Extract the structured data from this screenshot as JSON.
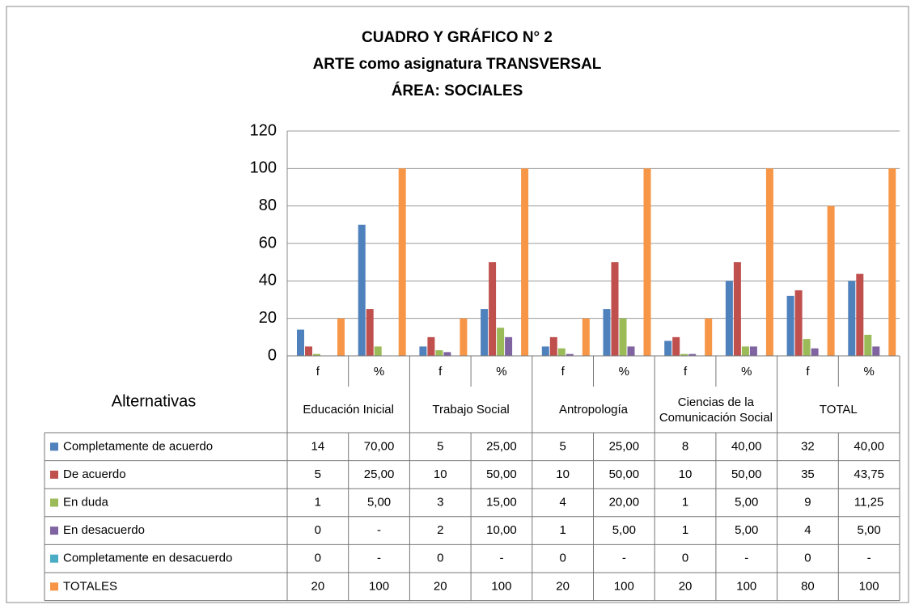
{
  "chart_data": {
    "type": "bar",
    "title": [
      "CUADRO Y GRÁFICO N° 2",
      "ARTE como asignatura TRANSVERSAL",
      "ÁREA: SOCIALES"
    ],
    "table_header": "Alternativas",
    "categories": [
      "f",
      "%",
      "f",
      "%",
      "f",
      "%",
      "f",
      "%",
      "f",
      "%"
    ],
    "groups": [
      "Educación Inicial",
      "Trabajo Social",
      "Antropología",
      "Ciencias de la Comunicación Social",
      "TOTAL"
    ],
    "ylim": [
      0,
      120
    ],
    "yticks": [
      0,
      20,
      40,
      60,
      80,
      100,
      120
    ],
    "grid": true,
    "series": [
      {
        "name": "Completamente de acuerdo",
        "color": "#4f81bd",
        "values": [
          14,
          70,
          5,
          25,
          5,
          25,
          8,
          40,
          32,
          40
        ],
        "value_labels": [
          "14",
          "70,00",
          "5",
          "25,00",
          "5",
          "25,00",
          "8",
          "40,00",
          "32",
          "40,00"
        ]
      },
      {
        "name": "De acuerdo",
        "color": "#c0504d",
        "values": [
          5,
          25,
          10,
          50,
          10,
          50,
          10,
          50,
          35,
          43.75
        ],
        "value_labels": [
          "5",
          "25,00",
          "10",
          "50,00",
          "10",
          "50,00",
          "10",
          "50,00",
          "35",
          "43,75"
        ]
      },
      {
        "name": "En duda",
        "color": "#9bbb59",
        "values": [
          1,
          5,
          3,
          15,
          4,
          20,
          1,
          5,
          9,
          11.25
        ],
        "value_labels": [
          "1",
          "5,00",
          "3",
          "15,00",
          "4",
          "20,00",
          "1",
          "5,00",
          "9",
          "11,25"
        ]
      },
      {
        "name": "En desacuerdo",
        "color": "#8064a2",
        "values": [
          0,
          0,
          2,
          10,
          1,
          5,
          1,
          5,
          4,
          5
        ],
        "value_labels": [
          "0",
          "-",
          "2",
          "10,00",
          "1",
          "5,00",
          "1",
          "5,00",
          "4",
          "5,00"
        ]
      },
      {
        "name": "Completamente en desacuerdo",
        "color": "#4bacc6",
        "values": [
          0,
          0,
          0,
          0,
          0,
          0,
          0,
          0,
          0,
          0
        ],
        "value_labels": [
          "0",
          "-",
          "0",
          "-",
          "0",
          "-",
          "0",
          "-",
          "0",
          "-"
        ]
      },
      {
        "name": "TOTALES",
        "color": "#f79646",
        "values": [
          20,
          100,
          20,
          100,
          20,
          100,
          20,
          100,
          80,
          100
        ],
        "value_labels": [
          "20",
          "100",
          "20",
          "100",
          "20",
          "100",
          "20",
          "100",
          "80",
          "100"
        ]
      }
    ]
  }
}
